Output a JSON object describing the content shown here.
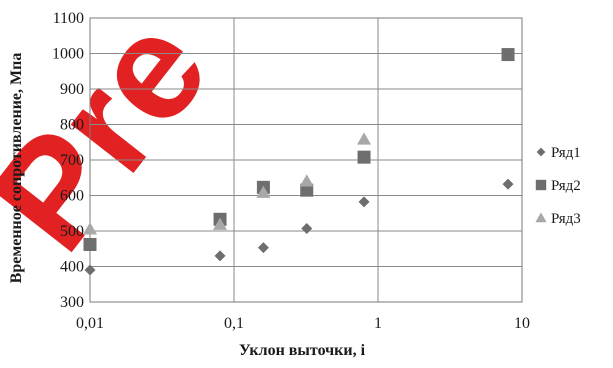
{
  "watermark": {
    "text": "Pre",
    "color": "#e01010"
  },
  "chart_data": {
    "type": "scatter",
    "title": "",
    "xlabel": "Уклон выточки, i",
    "ylabel": "Временное сопротивление, Мпа",
    "xscale": "log",
    "xlim": [
      0.01,
      10
    ],
    "ylim": [
      300,
      1100
    ],
    "x_ticks": [
      0.01,
      0.1,
      1,
      10
    ],
    "x_tick_labels": [
      "0,01",
      "0,1",
      "1",
      "10"
    ],
    "y_ticks": [
      300,
      400,
      500,
      600,
      700,
      800,
      900,
      1000,
      1100
    ],
    "y_tick_labels": [
      "300",
      "400",
      "500",
      "600",
      "700",
      "800",
      "900",
      "1000",
      "1100"
    ],
    "grid": true,
    "legend_position": "right",
    "series": [
      {
        "name": "Ряд1",
        "marker": "diamond",
        "color": "#6e6e6e",
        "points": [
          {
            "x": 0.01,
            "y": 390
          },
          {
            "x": 0.08,
            "y": 430
          },
          {
            "x": 0.16,
            "y": 453
          },
          {
            "x": 0.32,
            "y": 507
          },
          {
            "x": 0.8,
            "y": 582
          },
          {
            "x": 8,
            "y": 632
          }
        ]
      },
      {
        "name": "Ряд2",
        "marker": "square",
        "color": "#6e6e6e",
        "points": [
          {
            "x": 0.01,
            "y": 462
          },
          {
            "x": 0.08,
            "y": 533
          },
          {
            "x": 0.16,
            "y": 623
          },
          {
            "x": 0.32,
            "y": 615
          },
          {
            "x": 0.8,
            "y": 708
          },
          {
            "x": 8,
            "y": 997
          }
        ]
      },
      {
        "name": "Ряд3",
        "marker": "triangle",
        "color": "#a8a8a8",
        "points": [
          {
            "x": 0.01,
            "y": 505
          },
          {
            "x": 0.08,
            "y": 518
          },
          {
            "x": 0.16,
            "y": 608
          },
          {
            "x": 0.32,
            "y": 640
          },
          {
            "x": 0.8,
            "y": 758
          }
        ]
      }
    ]
  }
}
